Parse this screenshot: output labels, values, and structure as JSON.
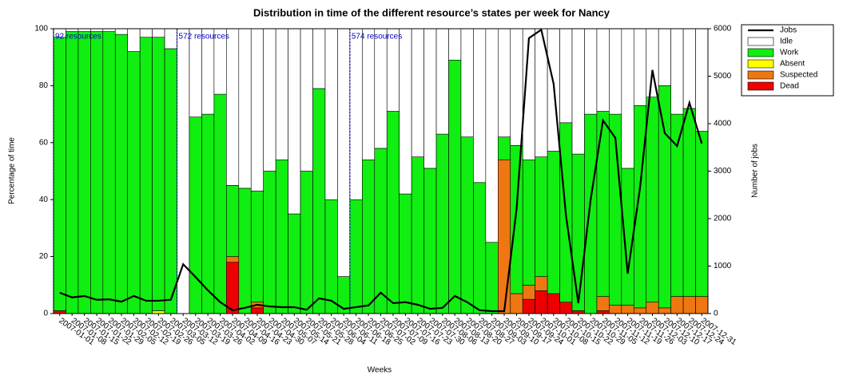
{
  "chart_data": {
    "type": "bar",
    "title": "Distribution in time of the different resource’s states per week for Nancy",
    "x_label": "Weeks",
    "y_label": "Percentage of time",
    "y2_label": "Number of jobs",
    "categories": [
      "2007-01-01",
      "2007-01-08",
      "2007-01-15",
      "2007-01-22",
      "2007-01-29",
      "2007-02-05",
      "2007-02-12",
      "2007-02-19",
      "2007-02-26",
      "2007-03-05",
      "2007-03-12",
      "2007-03-19",
      "2007-03-26",
      "2007-04-02",
      "2007-04-09",
      "2007-04-16",
      "2007-04-23",
      "2007-04-30",
      "2007-05-07",
      "2007-05-14",
      "2007-05-21",
      "2007-05-28",
      "2007-06-04",
      "2007-06-11",
      "2007-06-18",
      "2007-06-25",
      "2007-07-02",
      "2007-07-09",
      "2007-07-16",
      "2007-07-23",
      "2007-07-30",
      "2007-08-06",
      "2007-08-13",
      "2007-08-20",
      "2007-08-27",
      "2007-09-03",
      "2007-09-10",
      "2007-09-17",
      "2007-09-24",
      "2007-10-01",
      "2007-10-08",
      "2007-10-15",
      "2007-10-22",
      "2007-10-29",
      "2007-11-05",
      "2007-11-12",
      "2007-11-19",
      "2007-11-26",
      "2007-12-03",
      "2007-12-10",
      "2007-12-17",
      "2007-12-24",
      "2007-12-31"
    ],
    "stacked": true,
    "series": [
      {
        "name": "Jobs",
        "type": "line",
        "axis": "y2",
        "color": "#000000",
        "values": [
          440,
          340,
          370,
          290,
          300,
          250,
          370,
          270,
          270,
          290,
          1040,
          770,
          490,
          240,
          70,
          120,
          185,
          150,
          135,
          135,
          80,
          320,
          270,
          100,
          135,
          170,
          440,
          220,
          240,
          185,
          100,
          120,
          370,
          240,
          70,
          50,
          50,
          2200,
          5800,
          5980,
          4840,
          2070,
          220,
          2400,
          4070,
          3700,
          840,
          2650,
          5130,
          3800,
          3530,
          4440,
          3580
        ]
      },
      {
        "name": "Idle",
        "color": "#ffffff",
        "values": [
          3,
          1,
          1,
          1,
          1,
          2,
          8,
          3,
          3,
          7,
          100,
          31,
          30,
          23,
          55,
          56,
          57,
          50,
          46,
          65,
          50,
          21,
          60,
          87,
          60,
          46,
          42,
          29,
          58,
          45,
          49,
          37,
          11,
          38,
          54,
          75,
          38,
          41,
          46,
          45,
          43,
          33,
          44,
          30,
          29,
          30,
          49,
          27,
          24,
          20,
          30,
          28,
          36
        ]
      },
      {
        "name": "Work",
        "color": "#11ee11",
        "values": [
          96,
          99,
          99,
          99,
          99,
          98,
          92,
          97,
          96,
          93,
          0,
          69,
          70,
          77,
          25,
          44,
          39,
          50,
          54,
          35,
          50,
          79,
          40,
          13,
          40,
          54,
          58,
          71,
          42,
          55,
          51,
          63,
          89,
          62,
          46,
          25,
          8,
          52,
          44,
          42,
          50,
          63,
          55,
          70,
          65,
          67,
          48,
          71,
          72,
          78,
          64,
          66,
          58
        ]
      },
      {
        "name": "Absent",
        "color": "#ffff00",
        "values": [
          0,
          0,
          0,
          0,
          0,
          0,
          0,
          0,
          1,
          0,
          0,
          0,
          0,
          0,
          0,
          0,
          0,
          0,
          0,
          0,
          0,
          0,
          0,
          0,
          0,
          0,
          0,
          0,
          0,
          0,
          0,
          0,
          0,
          0,
          0,
          0,
          0,
          0,
          0,
          0,
          0,
          0,
          0,
          0,
          0,
          0,
          0,
          0,
          0,
          0,
          0,
          0,
          0
        ]
      },
      {
        "name": "Suspected",
        "color": "#ee7711",
        "values": [
          0,
          0,
          0,
          0,
          0,
          0,
          0,
          0,
          0,
          0,
          0,
          0,
          0,
          0,
          2,
          0,
          2,
          0,
          0,
          0,
          0,
          0,
          0,
          0,
          0,
          0,
          0,
          0,
          0,
          0,
          0,
          0,
          0,
          0,
          0,
          0,
          54,
          7,
          5,
          5,
          0,
          0,
          0,
          0,
          5,
          3,
          3,
          2,
          4,
          2,
          6,
          6,
          6
        ]
      },
      {
        "name": "Dead",
        "color": "#ee0000",
        "values": [
          1,
          0,
          0,
          0,
          0,
          0,
          0,
          0,
          0,
          0,
          0,
          0,
          0,
          0,
          18,
          0,
          2,
          0,
          0,
          0,
          0,
          0,
          0,
          0,
          0,
          0,
          0,
          0,
          0,
          0,
          0,
          0,
          0,
          0,
          0,
          0,
          0,
          0,
          5,
          8,
          7,
          4,
          1,
          0,
          1,
          0,
          0,
          0,
          0,
          0,
          0,
          0,
          0
        ]
      }
    ],
    "annotations": [
      {
        "text": "92 resources",
        "category": "2007-01-01"
      },
      {
        "text": "572 resources",
        "category": "2007-03-12"
      },
      {
        "text": "574 resources",
        "category": "2007-06-18"
      }
    ],
    "annotation_color": "#0000cc",
    "ylim": [
      0,
      100
    ],
    "yticks": [
      0,
      20,
      40,
      60,
      80,
      100
    ],
    "y2lim": [
      0,
      6000
    ],
    "y2ticks": [
      0,
      1000,
      2000,
      3000,
      4000,
      5000,
      6000
    ],
    "legend": "outside-right"
  }
}
